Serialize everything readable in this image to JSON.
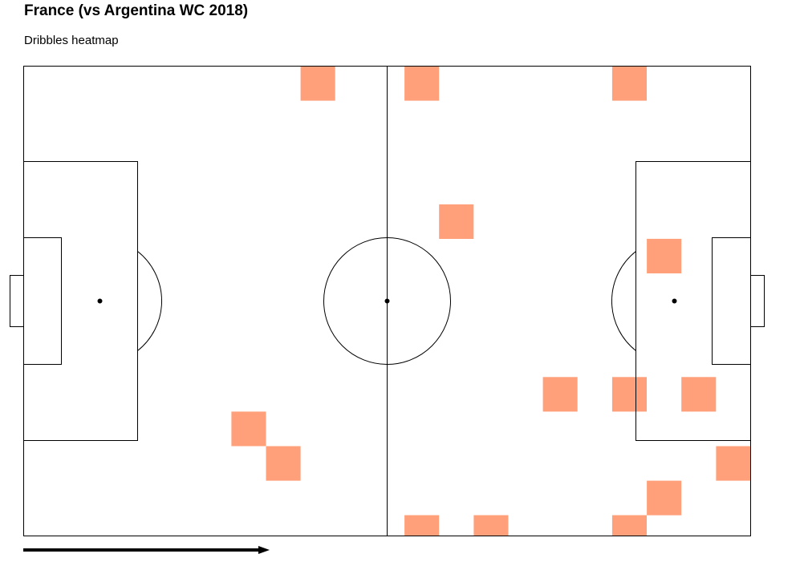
{
  "chart_data": {
    "type": "heatmap",
    "title": "France (vs Argentina WC 2018)",
    "subtitle": "Dribbles heatmap",
    "pitch": {
      "length": 105,
      "width": 68
    },
    "bin_size": 5,
    "cell_color": "#FFA07A",
    "attack_direction": "left-to-right",
    "cells": [
      {
        "x": 40,
        "y": 0
      },
      {
        "x": 55,
        "y": 0
      },
      {
        "x": 85,
        "y": 0
      },
      {
        "x": 60,
        "y": 20
      },
      {
        "x": 90,
        "y": 25
      },
      {
        "x": 75,
        "y": 45
      },
      {
        "x": 85,
        "y": 45
      },
      {
        "x": 95,
        "y": 45
      },
      {
        "x": 30,
        "y": 50
      },
      {
        "x": 35,
        "y": 55
      },
      {
        "x": 100,
        "y": 55
      },
      {
        "x": 90,
        "y": 60
      },
      {
        "x": 55,
        "y": 65
      },
      {
        "x": 65,
        "y": 65
      },
      {
        "x": 85,
        "y": 65
      }
    ]
  }
}
